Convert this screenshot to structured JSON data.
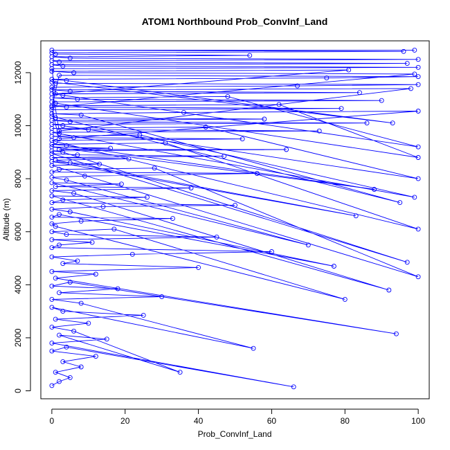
{
  "chart_data": {
    "type": "scatter",
    "title": "ATOM1 Northbound Prob_ConvInf_Land",
    "xlabel": "Prob_ConvInf_Land",
    "ylabel": "Altitude (m)",
    "xlim": [
      -3,
      103
    ],
    "ylim": [
      -300,
      13200
    ],
    "xticks": [
      0,
      20,
      40,
      60,
      80,
      100
    ],
    "yticks": [
      0,
      2000,
      4000,
      6000,
      8000,
      10000,
      12000
    ],
    "grid": false,
    "legend": "none",
    "series": [
      {
        "color": "#0000ff",
        "style": "line-with-open-circles",
        "x": [
          0,
          2,
          5,
          1,
          8,
          3,
          12,
          0,
          4,
          66,
          0,
          15,
          2,
          35,
          6,
          0,
          10,
          1,
          25,
          3,
          0,
          55,
          8,
          0,
          30,
          2,
          18,
          0,
          5,
          94,
          1,
          12,
          0,
          40,
          3,
          7,
          0,
          22,
          60,
          0,
          2,
          11,
          0,
          45,
          4,
          0,
          17,
          80,
          1,
          0,
          8,
          33,
          0,
          2,
          77,
          5,
          0,
          14,
          50,
          0,
          3,
          26,
          0,
          92,
          6,
          0,
          38,
          1,
          19,
          0,
          70,
          4,
          0,
          9,
          56,
          0,
          2,
          28,
          100,
          0,
          13,
          5,
          0,
          83,
          1,
          21,
          0,
          47,
          7,
          0,
          97,
          3,
          0,
          64,
          2,
          16,
          0,
          88,
          4,
          0,
          31,
          100,
          1,
          0,
          52,
          6,
          0,
          24,
          99,
          2,
          0,
          73,
          10,
          0,
          42,
          100,
          3,
          0,
          86,
          5,
          0,
          58,
          1,
          0,
          95,
          8,
          0,
          36,
          100,
          2,
          0,
          79,
          4,
          0,
          62,
          100,
          1,
          0,
          90,
          7,
          0,
          48,
          100,
          3,
          0,
          84,
          5,
          0,
          98,
          2,
          0,
          67,
          100,
          1,
          0,
          93,
          4,
          0,
          75,
          100,
          2,
          0,
          99,
          6,
          0,
          81,
          1,
          0,
          100,
          3,
          0,
          97,
          2,
          0,
          100,
          5,
          0,
          54,
          1,
          0,
          96,
          0,
          99
        ],
        "y": [
          200,
          350,
          500,
          700,
          900,
          1100,
          1300,
          1500,
          1650,
          150,
          1800,
          1950,
          2100,
          700,
          2250,
          2400,
          2550,
          2700,
          2850,
          3000,
          3150,
          1600,
          3300,
          3450,
          3550,
          3700,
          3850,
          3950,
          4100,
          2150,
          4250,
          4400,
          4500,
          4650,
          4800,
          4900,
          5050,
          5150,
          5250,
          5400,
          5500,
          5600,
          5700,
          5800,
          5900,
          6000,
          6100,
          3450,
          6200,
          6300,
          6400,
          6500,
          6550,
          6650,
          4700,
          6750,
          6850,
          6950,
          7000,
          7100,
          7200,
          7300,
          7350,
          3800,
          7450,
          7550,
          7650,
          7700,
          7800,
          7850,
          5500,
          7950,
          8050,
          8100,
          8200,
          8250,
          8350,
          8400,
          4300,
          8500,
          8550,
          8600,
          8650,
          6600,
          8700,
          8750,
          8800,
          8850,
          8900,
          8950,
          4850,
          9000,
          9050,
          9100,
          9100,
          9150,
          9200,
          7600,
          9250,
          9300,
          9350,
          6100,
          9400,
          9450,
          9500,
          9550,
          9600,
          9650,
          7300,
          9700,
          9750,
          9800,
          9850,
          9900,
          9950,
          8000,
          10000,
          10050,
          10100,
          10150,
          10200,
          10250,
          10300,
          10350,
          7100,
          10400,
          10450,
          10500,
          10550,
          9500,
          10600,
          10650,
          10700,
          10750,
          10800,
          8800,
          10850,
          10900,
          10950,
          11000,
          11050,
          11100,
          9200,
          11150,
          11200,
          11250,
          11300,
          11350,
          11400,
          9800,
          11450,
          11500,
          11550,
          11600,
          11650,
          10100,
          11700,
          11750,
          11800,
          11850,
          11900,
          10700,
          11950,
          12000,
          12050,
          12100,
          11200,
          12150,
          12200,
          12250,
          12300,
          12350,
          12400,
          12450,
          12500,
          12550,
          12600,
          12650,
          12700,
          12750,
          12800,
          12850,
          12850
        ]
      }
    ]
  }
}
